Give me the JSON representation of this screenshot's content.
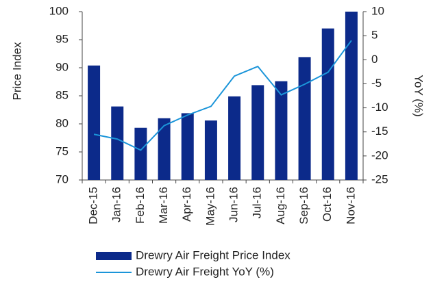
{
  "chart_data": {
    "type": "bar_line",
    "ylabel": "Price Index",
    "y2label": "YoY (%)",
    "categories": [
      "Dec-15",
      "Jan-16",
      "Feb-16",
      "Mar-16",
      "Apr-16",
      "May-16",
      "Jun-16",
      "Jul-16",
      "Aug-16",
      "Sep-16",
      "Oct-16",
      "Nov-16"
    ],
    "series": [
      {
        "name": "Drewry Air Freight Price Index",
        "type": "bar",
        "color": "#0c2a8a",
        "values": [
          90.4,
          83.1,
          79.3,
          81.0,
          81.9,
          80.6,
          84.9,
          86.9,
          87.6,
          91.9,
          97.0,
          100
        ]
      },
      {
        "name": "Drewry Air Freight YoY (%)",
        "type": "line",
        "axis": "y2",
        "color": "#1b95d9",
        "values": [
          -15.5,
          -16.5,
          -18.8,
          -13.7,
          -11.5,
          -9.7,
          -3.4,
          -1.4,
          -7.3,
          -5.1,
          -2.6,
          4.0
        ]
      }
    ],
    "ylim": [
      70,
      100
    ],
    "yticks": [
      70,
      75,
      80,
      85,
      90,
      95,
      100
    ],
    "y2lim": [
      -25,
      10
    ],
    "y2ticks": [
      -25,
      -20,
      -15,
      -10,
      -5,
      0,
      5,
      10
    ]
  }
}
